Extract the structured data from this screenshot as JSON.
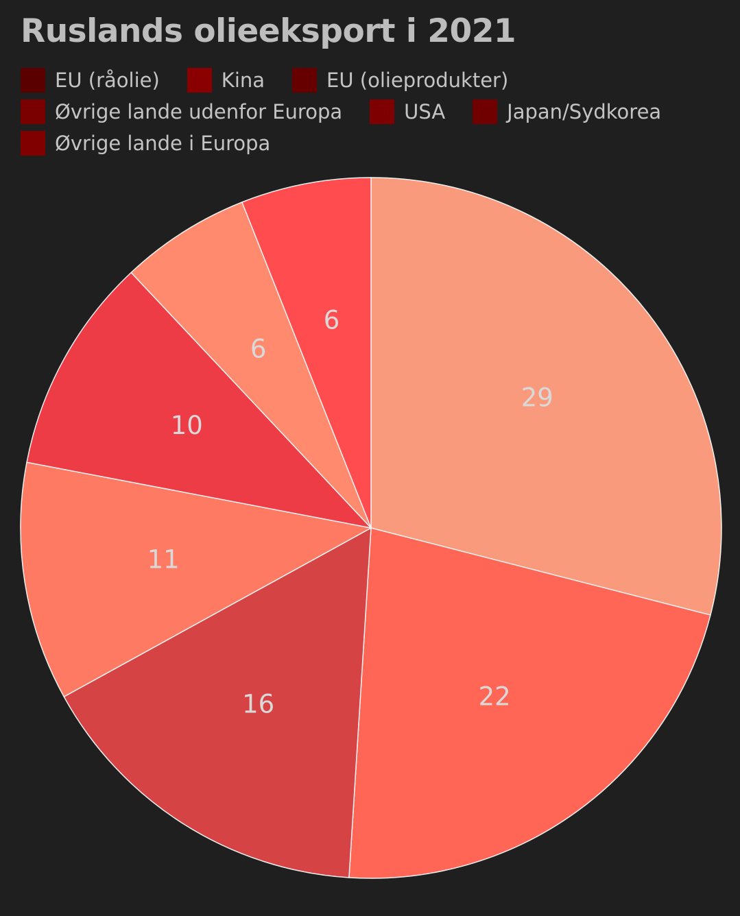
{
  "chart_data": {
    "type": "pie",
    "title": "Ruslands olieeksport i 2021",
    "legend_position": "top-left",
    "slices": [
      {
        "label": "EU (råolie)",
        "value": 29,
        "color": "#fa9a7c",
        "legend_color": "#5a0000"
      },
      {
        "label": "Kina",
        "value": 22,
        "color": "#ff6656",
        "legend_color": "#8a0000"
      },
      {
        "label": "EU (olieprodukter)",
        "value": 16,
        "color": "#d64344",
        "legend_color": "#660000"
      },
      {
        "label": "Øvrige lande udenfor Europa",
        "value": 11,
        "color": "#ff7a62",
        "legend_color": "#7a0000"
      },
      {
        "label": "USA",
        "value": 10,
        "color": "#ee3c46",
        "legend_color": "#7f0000"
      },
      {
        "label": "Japan/Sydkorea",
        "value": 6,
        "color": "#ff8a6e",
        "legend_color": "#700000"
      },
      {
        "label": "Øvrige lande i Europa",
        "value": 6,
        "color": "#ff4d4f",
        "legend_color": "#800000"
      }
    ],
    "legend_rows": [
      [
        0,
        1,
        2
      ],
      [
        3,
        4,
        5
      ],
      [
        6
      ]
    ]
  }
}
